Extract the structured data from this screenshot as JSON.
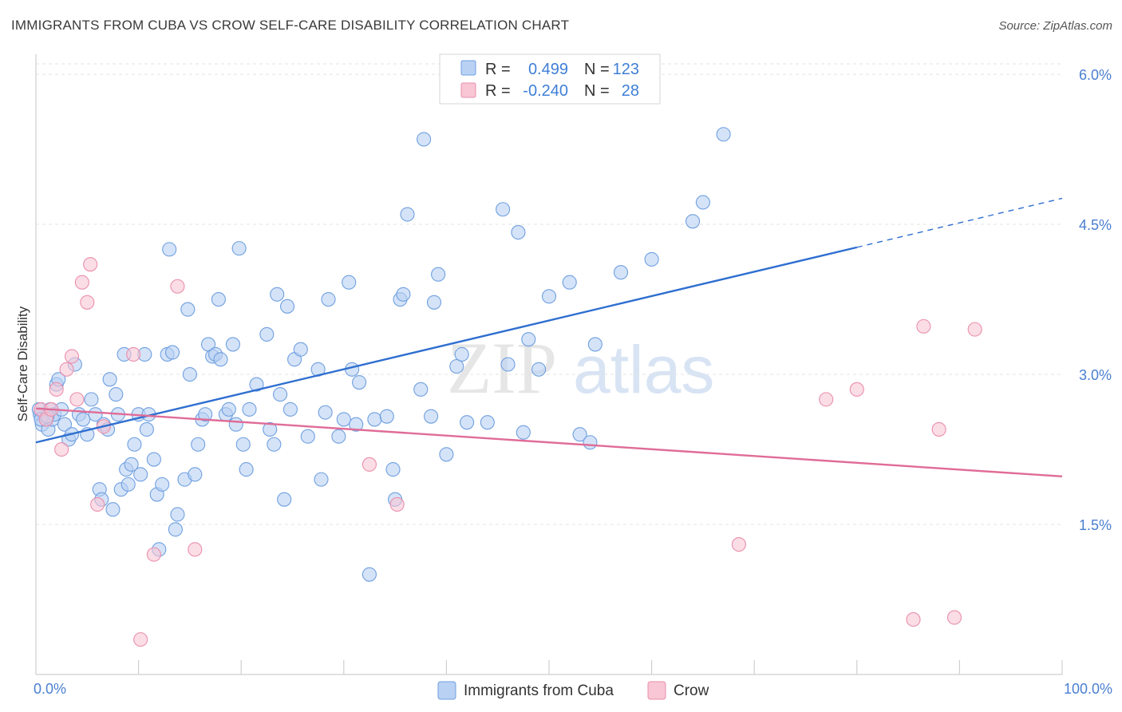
{
  "header": {
    "title": "IMMIGRANTS FROM CUBA VS CROW SELF-CARE DISABILITY CORRELATION CHART",
    "source": "Source: ZipAtlas.com"
  },
  "watermark": {
    "zip": "ZIP",
    "atlas": "atlas"
  },
  "legend": {
    "r_label": "R =",
    "n_label": "N =",
    "rows": [
      {
        "r": "0.499",
        "n": "123",
        "color": "#6fa0e0",
        "fill": "#b9d1f3"
      },
      {
        "r": "-0.240",
        "n": "28",
        "color": "#ea8fac",
        "fill": "#f8c6d5"
      }
    ]
  },
  "bottom_legend": [
    {
      "label": "Immigrants from Cuba",
      "fill": "#b9d1f3",
      "stroke": "#6fa0e0"
    },
    {
      "label": "Crow",
      "fill": "#f8c6d5",
      "stroke": "#ea8fac"
    }
  ],
  "chart_data": {
    "type": "scatter",
    "title": "IMMIGRANTS FROM CUBA VS CROW SELF-CARE DISABILITY CORRELATION CHART",
    "xlabel": "",
    "ylabel": "Self-Care Disability",
    "xlim": [
      0,
      100
    ],
    "ylim": [
      0,
      6.2
    ],
    "x_tick_labels": [
      "0.0%",
      "100.0%"
    ],
    "y_ticks": [
      1.5,
      3.0,
      4.5,
      6.0
    ],
    "y_tick_labels": [
      "1.5%",
      "3.0%",
      "4.5%",
      "6.0%"
    ],
    "grid": true,
    "legend_position": "top-center",
    "series": [
      {
        "name": "Immigrants from Cuba",
        "color": "#6fa0e0",
        "fill": "#b9d1f3",
        "trend": {
          "x": [
            0,
            80
          ],
          "y": [
            2.32,
            4.27
          ],
          "dashed_extension": {
            "x": [
              80,
              100
            ],
            "y": [
              4.27,
              4.76
            ]
          }
        },
        "points": [
          [
            0.4,
            2.6
          ],
          [
            0.6,
            2.5
          ],
          [
            0.8,
            2.6
          ],
          [
            1.0,
            2.55
          ],
          [
            1.2,
            2.45
          ],
          [
            1.4,
            2.65
          ],
          [
            1.6,
            2.55
          ],
          [
            1.8,
            2.6
          ],
          [
            2.0,
            2.9
          ],
          [
            2.2,
            2.95
          ],
          [
            2.5,
            2.65
          ],
          [
            2.8,
            2.5
          ],
          [
            3.2,
            2.35
          ],
          [
            3.5,
            2.4
          ],
          [
            3.8,
            3.1
          ],
          [
            4.2,
            2.6
          ],
          [
            4.6,
            2.55
          ],
          [
            5.0,
            2.4
          ],
          [
            5.4,
            2.75
          ],
          [
            5.8,
            2.6
          ],
          [
            6.2,
            1.85
          ],
          [
            6.4,
            1.75
          ],
          [
            6.6,
            2.5
          ],
          [
            7.0,
            2.45
          ],
          [
            7.2,
            2.95
          ],
          [
            7.5,
            1.65
          ],
          [
            7.8,
            2.8
          ],
          [
            8.0,
            2.6
          ],
          [
            8.3,
            1.85
          ],
          [
            8.6,
            3.2
          ],
          [
            8.8,
            2.05
          ],
          [
            9.0,
            1.9
          ],
          [
            9.3,
            2.1
          ],
          [
            9.6,
            2.3
          ],
          [
            10.0,
            2.6
          ],
          [
            10.2,
            2.0
          ],
          [
            10.6,
            3.2
          ],
          [
            10.8,
            2.45
          ],
          [
            11.0,
            2.6
          ],
          [
            11.5,
            2.15
          ],
          [
            11.8,
            1.8
          ],
          [
            12.0,
            1.25
          ],
          [
            12.3,
            1.9
          ],
          [
            12.8,
            3.2
          ],
          [
            13.0,
            4.25
          ],
          [
            13.3,
            3.22
          ],
          [
            13.8,
            1.6
          ],
          [
            13.6,
            1.45
          ],
          [
            14.5,
            1.95
          ],
          [
            14.8,
            3.65
          ],
          [
            15.0,
            3.0
          ],
          [
            15.5,
            2.0
          ],
          [
            15.8,
            2.3
          ],
          [
            16.2,
            2.55
          ],
          [
            16.5,
            2.6
          ],
          [
            16.8,
            3.3
          ],
          [
            17.2,
            3.18
          ],
          [
            17.5,
            3.2
          ],
          [
            17.8,
            3.75
          ],
          [
            18.0,
            3.15
          ],
          [
            18.5,
            2.6
          ],
          [
            18.8,
            2.65
          ],
          [
            19.2,
            3.3
          ],
          [
            19.5,
            2.5
          ],
          [
            19.8,
            4.26
          ],
          [
            20.2,
            2.3
          ],
          [
            20.5,
            2.05
          ],
          [
            20.8,
            2.65
          ],
          [
            21.5,
            2.9
          ],
          [
            22.5,
            3.4
          ],
          [
            22.8,
            2.45
          ],
          [
            23.2,
            2.3
          ],
          [
            23.5,
            3.8
          ],
          [
            23.8,
            2.8
          ],
          [
            24.2,
            1.75
          ],
          [
            24.5,
            3.68
          ],
          [
            24.8,
            2.65
          ],
          [
            25.2,
            3.15
          ],
          [
            25.8,
            3.25
          ],
          [
            26.5,
            2.38
          ],
          [
            27.5,
            3.05
          ],
          [
            27.8,
            1.95
          ],
          [
            28.2,
            2.62
          ],
          [
            28.5,
            3.75
          ],
          [
            29.5,
            2.38
          ],
          [
            30.0,
            2.55
          ],
          [
            30.5,
            3.92
          ],
          [
            30.8,
            3.05
          ],
          [
            31.5,
            2.92
          ],
          [
            31.2,
            2.5
          ],
          [
            32.5,
            1.0
          ],
          [
            33.0,
            2.55
          ],
          [
            34.2,
            2.58
          ],
          [
            34.8,
            2.05
          ],
          [
            35.0,
            1.75
          ],
          [
            35.5,
            3.75
          ],
          [
            35.8,
            3.8
          ],
          [
            36.2,
            4.6
          ],
          [
            37.5,
            2.85
          ],
          [
            37.8,
            5.35
          ],
          [
            38.5,
            2.58
          ],
          [
            38.8,
            3.72
          ],
          [
            39.2,
            4.0
          ],
          [
            40.0,
            2.2
          ],
          [
            41.0,
            3.08
          ],
          [
            41.5,
            3.2
          ],
          [
            42.0,
            2.52
          ],
          [
            44.0,
            2.52
          ],
          [
            45.5,
            4.65
          ],
          [
            46.0,
            3.1
          ],
          [
            47.0,
            4.42
          ],
          [
            47.5,
            2.42
          ],
          [
            48.0,
            3.35
          ],
          [
            49.0,
            3.05
          ],
          [
            50.0,
            3.78
          ],
          [
            52.0,
            3.92
          ],
          [
            53.0,
            2.4
          ],
          [
            54.0,
            2.32
          ],
          [
            54.5,
            3.3
          ],
          [
            57.0,
            4.02
          ],
          [
            60.0,
            4.15
          ],
          [
            64.0,
            4.53
          ],
          [
            65.0,
            4.72
          ],
          [
            67.0,
            5.4
          ],
          [
            0.3,
            2.65
          ],
          [
            0.5,
            2.55
          ],
          [
            1.1,
            2.58
          ]
        ]
      },
      {
        "name": "Crow",
        "color": "#ea8fac",
        "fill": "#f8c6d5",
        "trend": {
          "x": [
            0,
            100
          ],
          "y": [
            2.66,
            1.98
          ]
        },
        "points": [
          [
            0.5,
            2.65
          ],
          [
            1.0,
            2.55
          ],
          [
            1.5,
            2.65
          ],
          [
            2.0,
            2.85
          ],
          [
            2.5,
            2.25
          ],
          [
            3.0,
            3.05
          ],
          [
            3.5,
            3.18
          ],
          [
            4.0,
            2.75
          ],
          [
            4.5,
            3.92
          ],
          [
            5.0,
            3.72
          ],
          [
            5.3,
            4.1
          ],
          [
            6.0,
            1.7
          ],
          [
            6.6,
            2.48
          ],
          [
            9.5,
            3.2
          ],
          [
            10.2,
            0.35
          ],
          [
            11.5,
            1.2
          ],
          [
            13.8,
            3.88
          ],
          [
            15.5,
            1.25
          ],
          [
            32.5,
            2.1
          ],
          [
            35.2,
            1.7
          ],
          [
            68.5,
            1.3
          ],
          [
            77.0,
            2.75
          ],
          [
            80.0,
            2.85
          ],
          [
            85.5,
            0.55
          ],
          [
            86.5,
            3.48
          ],
          [
            88.0,
            2.45
          ],
          [
            89.5,
            0.57
          ],
          [
            91.5,
            3.45
          ]
        ]
      }
    ]
  }
}
